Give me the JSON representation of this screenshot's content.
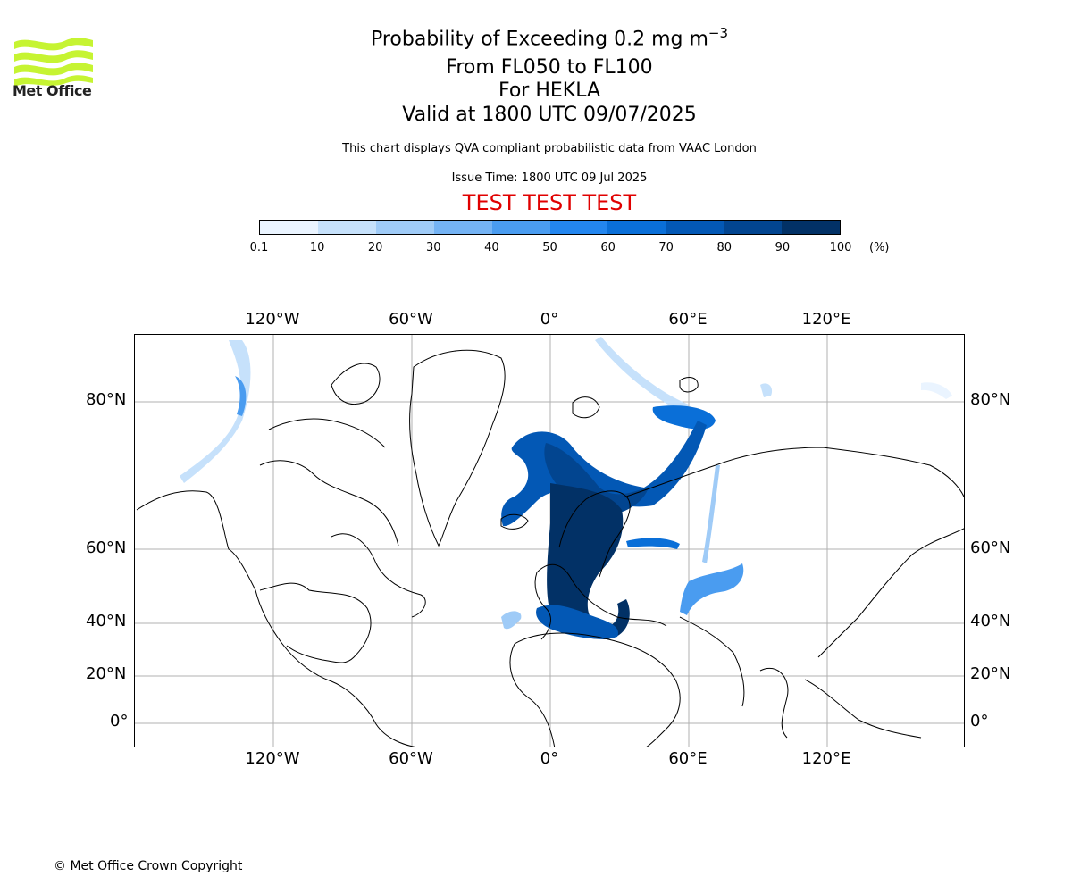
{
  "logo": {
    "text": "Met Office",
    "accent": "#c6f432"
  },
  "title": {
    "line1": "Probability of Exceeding 0.2 mg m",
    "line1_sup": "−3",
    "line2": "From FL050 to FL100",
    "line3": "For HEKLA",
    "line4": "Valid at 1800 UTC 09/07/2025"
  },
  "subtitle": "This chart displays QVA compliant probabilistic data from VAAC London",
  "issue_time": "Issue Time: 1800 UTC 09 Jul 2025",
  "test_banner": "TEST TEST TEST",
  "test_color": "#e00000",
  "colorbar": {
    "unit": "(%)",
    "ticks": [
      "0.1",
      "10",
      "20",
      "30",
      "40",
      "50",
      "60",
      "70",
      "80",
      "90",
      "100"
    ],
    "colors": [
      "#eaf4ff",
      "#c6e1fb",
      "#9fcbf7",
      "#74b3f4",
      "#4a9cf0",
      "#2386ef",
      "#0a6fd8",
      "#0358b5",
      "#024590",
      "#023166"
    ]
  },
  "axes": {
    "lon_labels": [
      "120°W",
      "60°W",
      "0°",
      "60°E",
      "120°E"
    ],
    "lat_labels": [
      "80°N",
      "60°N",
      "40°N",
      "20°N",
      "0°"
    ]
  },
  "copyright": "© Met Office Crown Copyright"
}
